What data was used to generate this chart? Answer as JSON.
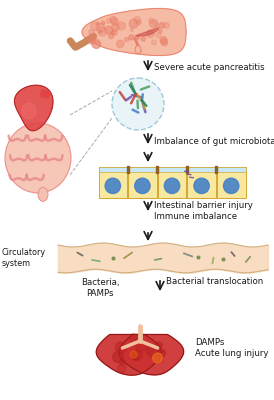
{
  "background_color": "#ffffff",
  "arrow_color": "#1a1a1a",
  "text_color": "#1a1a1a",
  "labels": {
    "pancreatitis": "Severe acute pancreatitis",
    "microbiota": "Imbalance of gut microbiota",
    "barrier": "Intestinal barrier injury\nImmune imbalance",
    "circulatory": "Circulatory\nsystem",
    "bacteria": "Bacteria,\nPAMPs",
    "translocation": "Bacterial translocation",
    "damps": "DAMPs\nAcute lung injury"
  },
  "pancreas_body_color": "#f5b8a0",
  "pancreas_dark": "#e8806a",
  "pancreas_tail_color": "#c8885a",
  "stomach_color": "#e04545",
  "stomach_inner": "#f08080",
  "intestine_color": "#e88888",
  "intestine_fill": "#f5c0b0",
  "microbiota_circle_color": "#e8f4f8",
  "microbiota_circle_edge": "#a0c8d8",
  "cell_fill": "#f8e8a0",
  "cell_border": "#d4a830",
  "cell_top_color": "#c8e8f8",
  "cell_nucleus": "#4080c8",
  "blood_vessel_color": "#f8dcc0",
  "blood_vessel_edge": "#d0b080",
  "lung_color_dark": "#b82020",
  "lung_color_mid": "#cc3030",
  "lung_highlight": "#e05010",
  "dashed_line_color": "#aaaaaa",
  "figsize": [
    2.74,
    4.0
  ],
  "dpi": 100
}
